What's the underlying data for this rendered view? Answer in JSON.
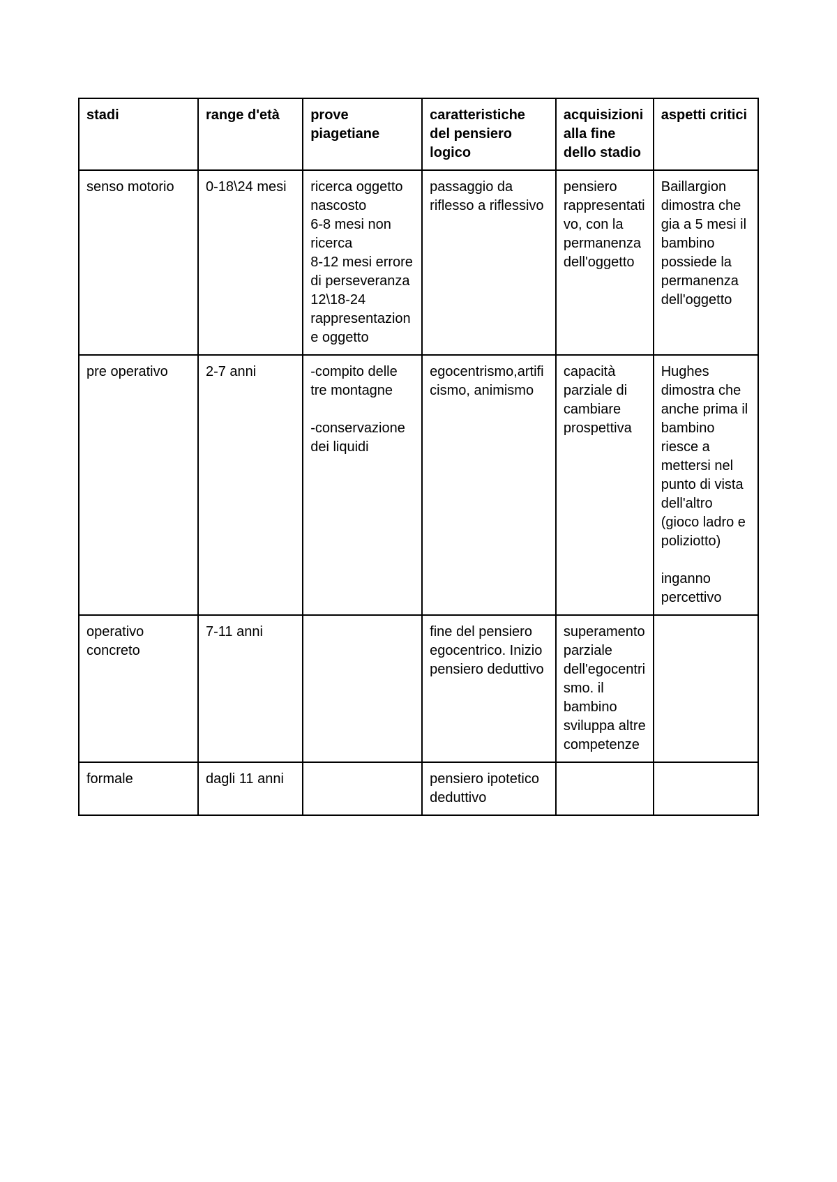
{
  "table": {
    "columns": [
      "stadi",
      "range d'età",
      "prove piagetiane",
      "caratteristiche del pensiero logico",
      "acquisizioni alla fine dello stadio",
      "aspetti critici"
    ],
    "col_widths_pct": [
      16.5,
      14.5,
      16.5,
      18.5,
      13.5,
      14.5
    ],
    "rows": [
      {
        "stadi": "senso motorio",
        "range": "0-18\\24 mesi",
        "prove": "ricerca oggetto nascosto\n6-8 mesi non ricerca\n8-12 mesi errore di perseveranza\n12\\18-24 rappresentazione oggetto",
        "caratteristiche": "passaggio da riflesso a riflessivo",
        "acquisizioni": "pensiero rappresentativo, con la permanenza dell'oggetto",
        "aspetti": "Baillargion dimostra che gia a 5 mesi il bambino possiede la permanenza dell'oggetto"
      },
      {
        "stadi": "pre operativo",
        "range": "2-7 anni",
        "prove": "-compito delle tre montagne\n\n-conservazione dei liquidi",
        "caratteristiche": "egocentrismo,artificismo, animismo",
        "acquisizioni": "capacità parziale di cambiare prospettiva",
        "aspetti": "Hughes dimostra che anche prima il bambino riesce a mettersi nel punto di vista dell'altro (gioco ladro e poliziotto)\n\ninganno percettivo"
      },
      {
        "stadi": "operativo concreto",
        "range": "7-11 anni",
        "prove": "",
        "caratteristiche": "fine del pensiero egocentrico. Inizio pensiero deduttivo",
        "acquisizioni": "superamento parziale dell'egocentrismo. il bambino sviluppa altre competenze",
        "aspetti": ""
      },
      {
        "stadi": "formale",
        "range": "dagli 11 anni",
        "prove": "",
        "caratteristiche": "pensiero ipotetico deduttivo",
        "acquisizioni": "",
        "aspetti": ""
      }
    ],
    "border_color": "#000000",
    "background_color": "#ffffff",
    "font_size_pt": 15,
    "header_font_weight": "bold"
  }
}
